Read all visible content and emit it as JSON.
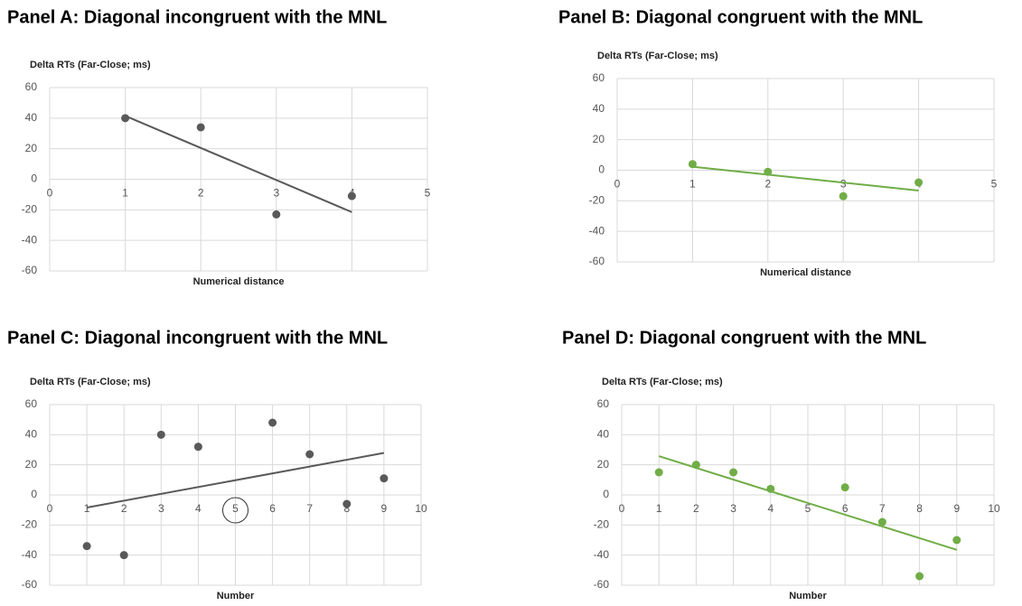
{
  "chart_data": [
    {
      "type": "scatter",
      "title": "Panel A: Diagonal incongruent with the MNL",
      "ylabel": "Delta RTs (Far-Close; ms)",
      "xlabel": "Numerical distance",
      "x": [
        1,
        2,
        3,
        4
      ],
      "series": [
        {
          "color": "#595959",
          "values": [
            40,
            34,
            -23,
            -11
          ]
        }
      ],
      "xlim": [
        0,
        5
      ],
      "xticks": [
        0,
        1,
        2,
        3,
        4,
        5
      ],
      "ylim": [
        -60,
        60
      ],
      "yticks": [
        -60,
        -40,
        -20,
        0,
        20,
        40,
        60
      ],
      "grid": true,
      "trendline": true
    },
    {
      "type": "scatter",
      "title": "Panel B: Diagonal congruent with the MNL",
      "ylabel": "Delta RTs (Far-Close; ms)",
      "xlabel": "Numerical distance",
      "x": [
        1,
        2,
        3,
        4
      ],
      "series": [
        {
          "color": "#70ad47",
          "values": [
            4,
            -1,
            -17,
            -8
          ]
        }
      ],
      "xlim": [
        0,
        5
      ],
      "xticks": [
        0,
        1,
        2,
        3,
        4,
        5
      ],
      "ylim": [
        -60,
        60
      ],
      "yticks": [
        -60,
        -40,
        -20,
        0,
        20,
        40,
        60
      ],
      "grid": true,
      "trendline": true
    },
    {
      "type": "scatter",
      "title": "Panel C: Diagonal incongruent with the MNL",
      "ylabel": "Delta RTs (Far-Close; ms)",
      "xlabel": "Number",
      "x": [
        1,
        2,
        3,
        4,
        6,
        7,
        8,
        9
      ],
      "series": [
        {
          "color": "#595959",
          "values": [
            -34,
            -40,
            40,
            32,
            48,
            27,
            -6,
            11
          ]
        }
      ],
      "xlim": [
        0,
        10
      ],
      "xticks": [
        0,
        1,
        2,
        3,
        4,
        5,
        6,
        7,
        8,
        9,
        10
      ],
      "ylim": [
        -60,
        60
      ],
      "yticks": [
        -60,
        -40,
        -20,
        0,
        20,
        40,
        60
      ],
      "grid": true,
      "trendline": true,
      "circled_xtick": 5
    },
    {
      "type": "scatter",
      "title": "Panel D: Diagonal congruent with the MNL",
      "ylabel": "Delta RTs (Far-Close; ms)",
      "xlabel": "Number",
      "x": [
        1,
        2,
        3,
        4,
        6,
        7,
        8,
        9
      ],
      "series": [
        {
          "color": "#70ad47",
          "values": [
            15,
            20,
            15,
            4,
            5,
            -18,
            -54,
            -30
          ]
        }
      ],
      "xlim": [
        0,
        10
      ],
      "xticks": [
        0,
        1,
        2,
        3,
        4,
        5,
        6,
        7,
        8,
        9,
        10
      ],
      "ylim": [
        -60,
        60
      ],
      "yticks": [
        -60,
        -40,
        -20,
        0,
        20,
        40,
        60
      ],
      "grid": true,
      "trendline": true
    }
  ]
}
